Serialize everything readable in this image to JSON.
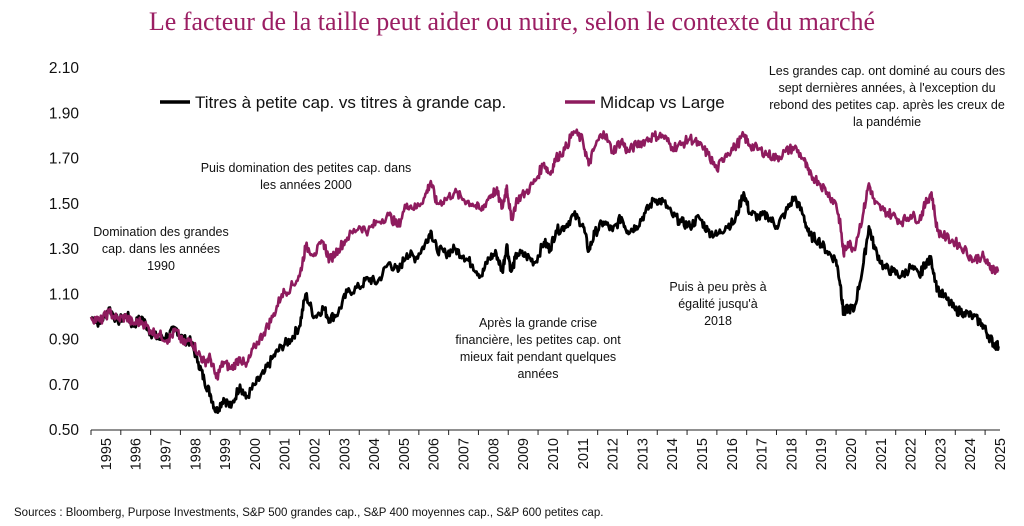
{
  "chart_data": {
    "type": "line",
    "title": "Le facteur de la taille peut aider ou nuire, selon le contexte du marché",
    "xlabel": "",
    "ylabel": "",
    "ylim": [
      0.5,
      2.1
    ],
    "yticks": [
      "0.50",
      "0.70",
      "0.90",
      "1.10",
      "1.30",
      "1.50",
      "1.70",
      "1.90",
      "2.10"
    ],
    "xlim": [
      1995,
      2025.5
    ],
    "xticks": [
      "1995",
      "1996",
      "1997",
      "1998",
      "1999",
      "2000",
      "2001",
      "2002",
      "2003",
      "2004",
      "2005",
      "2006",
      "2007",
      "2008",
      "2009",
      "2010",
      "2011",
      "2012",
      "2013",
      "2014",
      "2015",
      "2016",
      "2017",
      "2018",
      "2019",
      "2020",
      "2021",
      "2022",
      "2023",
      "2024",
      "2025"
    ],
    "legend_position": "top-left",
    "grid": false,
    "series": [
      {
        "name": "Titres à petite cap. vs titres à grande cap.",
        "color": "#000000",
        "points": [
          [
            1995.0,
            1.0
          ],
          [
            1995.3,
            0.97
          ],
          [
            1995.6,
            1.04
          ],
          [
            1995.9,
            0.98
          ],
          [
            1996.2,
            1.01
          ],
          [
            1996.4,
            0.96
          ],
          [
            1996.7,
            1.0
          ],
          [
            1997.0,
            0.93
          ],
          [
            1997.3,
            0.9
          ],
          [
            1997.6,
            0.92
          ],
          [
            1997.85,
            0.95
          ],
          [
            1998.1,
            0.9
          ],
          [
            1998.35,
            0.89
          ],
          [
            1998.6,
            0.8
          ],
          [
            1998.8,
            0.72
          ],
          [
            1999.0,
            0.66
          ],
          [
            1999.2,
            0.58
          ],
          [
            1999.45,
            0.64
          ],
          [
            1999.7,
            0.6
          ],
          [
            2000.0,
            0.7
          ],
          [
            2000.2,
            0.64
          ],
          [
            2000.5,
            0.7
          ],
          [
            2000.8,
            0.75
          ],
          [
            2001.1,
            0.82
          ],
          [
            2001.4,
            0.87
          ],
          [
            2001.7,
            0.9
          ],
          [
            2002.0,
            0.96
          ],
          [
            2002.2,
            1.1
          ],
          [
            2002.5,
            1.0
          ],
          [
            2002.8,
            1.04
          ],
          [
            2003.0,
            0.99
          ],
          [
            2003.3,
            1.02
          ],
          [
            2003.6,
            1.11
          ],
          [
            2004.0,
            1.13
          ],
          [
            2004.3,
            1.17
          ],
          [
            2004.6,
            1.15
          ],
          [
            2005.0,
            1.24
          ],
          [
            2005.3,
            1.2
          ],
          [
            2005.6,
            1.28
          ],
          [
            2005.9,
            1.26
          ],
          [
            2006.2,
            1.32
          ],
          [
            2006.4,
            1.38
          ],
          [
            2006.6,
            1.3
          ],
          [
            2006.9,
            1.28
          ],
          [
            2007.2,
            1.3
          ],
          [
            2007.5,
            1.27
          ],
          [
            2007.8,
            1.23
          ],
          [
            2008.1,
            1.18
          ],
          [
            2008.35,
            1.26
          ],
          [
            2008.6,
            1.28
          ],
          [
            2008.8,
            1.2
          ],
          [
            2008.95,
            1.32
          ],
          [
            2009.1,
            1.2
          ],
          [
            2009.3,
            1.28
          ],
          [
            2009.6,
            1.27
          ],
          [
            2009.9,
            1.24
          ],
          [
            2010.2,
            1.33
          ],
          [
            2010.4,
            1.3
          ],
          [
            2010.6,
            1.38
          ],
          [
            2010.9,
            1.4
          ],
          [
            2011.2,
            1.45
          ],
          [
            2011.5,
            1.41
          ],
          [
            2011.7,
            1.29
          ],
          [
            2011.9,
            1.37
          ],
          [
            2012.2,
            1.42
          ],
          [
            2012.5,
            1.38
          ],
          [
            2012.8,
            1.44
          ],
          [
            2013.0,
            1.38
          ],
          [
            2013.3,
            1.4
          ],
          [
            2013.6,
            1.46
          ],
          [
            2013.9,
            1.52
          ],
          [
            2014.2,
            1.51
          ],
          [
            2014.5,
            1.45
          ],
          [
            2014.8,
            1.42
          ],
          [
            2015.1,
            1.4
          ],
          [
            2015.4,
            1.44
          ],
          [
            2015.7,
            1.38
          ],
          [
            2016.0,
            1.36
          ],
          [
            2016.3,
            1.4
          ],
          [
            2016.6,
            1.42
          ],
          [
            2016.9,
            1.55
          ],
          [
            2017.1,
            1.46
          ],
          [
            2017.4,
            1.44
          ],
          [
            2017.7,
            1.45
          ],
          [
            2018.0,
            1.4
          ],
          [
            2018.3,
            1.46
          ],
          [
            2018.6,
            1.53
          ],
          [
            2018.9,
            1.45
          ],
          [
            2019.1,
            1.36
          ],
          [
            2019.4,
            1.34
          ],
          [
            2019.7,
            1.29
          ],
          [
            2020.0,
            1.25
          ],
          [
            2020.15,
            1.14
          ],
          [
            2020.25,
            1.01
          ],
          [
            2020.4,
            1.04
          ],
          [
            2020.6,
            1.03
          ],
          [
            2020.9,
            1.22
          ],
          [
            2021.1,
            1.4
          ],
          [
            2021.3,
            1.3
          ],
          [
            2021.6,
            1.22
          ],
          [
            2021.9,
            1.2
          ],
          [
            2022.2,
            1.18
          ],
          [
            2022.5,
            1.22
          ],
          [
            2022.8,
            1.18
          ],
          [
            2023.0,
            1.24
          ],
          [
            2023.2,
            1.25
          ],
          [
            2023.4,
            1.12
          ],
          [
            2023.7,
            1.08
          ],
          [
            2024.0,
            1.03
          ],
          [
            2024.3,
            1.02
          ],
          [
            2024.6,
            1.0
          ],
          [
            2024.9,
            0.97
          ],
          [
            2025.1,
            0.92
          ],
          [
            2025.3,
            0.88
          ],
          [
            2025.45,
            0.87
          ]
        ]
      },
      {
        "name": "Midcap vs Large",
        "color": "#8e1b5e",
        "points": [
          [
            1995.0,
            1.0
          ],
          [
            1995.3,
            0.98
          ],
          [
            1995.6,
            1.02
          ],
          [
            1995.9,
            0.99
          ],
          [
            1996.2,
            1.0
          ],
          [
            1996.4,
            0.97
          ],
          [
            1996.7,
            0.98
          ],
          [
            1997.0,
            0.94
          ],
          [
            1997.3,
            0.92
          ],
          [
            1997.6,
            0.9
          ],
          [
            1997.85,
            0.94
          ],
          [
            1998.1,
            0.88
          ],
          [
            1998.35,
            0.9
          ],
          [
            1998.6,
            0.84
          ],
          [
            1998.8,
            0.8
          ],
          [
            1999.0,
            0.82
          ],
          [
            1999.2,
            0.73
          ],
          [
            1999.45,
            0.8
          ],
          [
            1999.7,
            0.77
          ],
          [
            2000.0,
            0.82
          ],
          [
            2000.2,
            0.78
          ],
          [
            2000.5,
            0.87
          ],
          [
            2000.8,
            0.93
          ],
          [
            2001.1,
            1.0
          ],
          [
            2001.4,
            1.1
          ],
          [
            2001.7,
            1.13
          ],
          [
            2002.0,
            1.18
          ],
          [
            2002.2,
            1.31
          ],
          [
            2002.5,
            1.28
          ],
          [
            2002.8,
            1.33
          ],
          [
            2003.0,
            1.25
          ],
          [
            2003.3,
            1.3
          ],
          [
            2003.6,
            1.35
          ],
          [
            2004.0,
            1.4
          ],
          [
            2004.3,
            1.38
          ],
          [
            2004.6,
            1.42
          ],
          [
            2005.0,
            1.45
          ],
          [
            2005.3,
            1.4
          ],
          [
            2005.6,
            1.5
          ],
          [
            2005.9,
            1.48
          ],
          [
            2006.2,
            1.53
          ],
          [
            2006.4,
            1.6
          ],
          [
            2006.6,
            1.5
          ],
          [
            2006.9,
            1.52
          ],
          [
            2007.2,
            1.55
          ],
          [
            2007.5,
            1.52
          ],
          [
            2007.8,
            1.5
          ],
          [
            2008.1,
            1.47
          ],
          [
            2008.35,
            1.53
          ],
          [
            2008.6,
            1.56
          ],
          [
            2008.8,
            1.48
          ],
          [
            2008.95,
            1.58
          ],
          [
            2009.1,
            1.43
          ],
          [
            2009.3,
            1.52
          ],
          [
            2009.6,
            1.55
          ],
          [
            2009.9,
            1.6
          ],
          [
            2010.2,
            1.68
          ],
          [
            2010.4,
            1.63
          ],
          [
            2010.6,
            1.7
          ],
          [
            2010.9,
            1.74
          ],
          [
            2011.2,
            1.82
          ],
          [
            2011.5,
            1.78
          ],
          [
            2011.7,
            1.67
          ],
          [
            2011.9,
            1.75
          ],
          [
            2012.2,
            1.82
          ],
          [
            2012.5,
            1.73
          ],
          [
            2012.8,
            1.78
          ],
          [
            2013.0,
            1.73
          ],
          [
            2013.3,
            1.76
          ],
          [
            2013.6,
            1.78
          ],
          [
            2013.9,
            1.8
          ],
          [
            2014.2,
            1.8
          ],
          [
            2014.5,
            1.75
          ],
          [
            2014.8,
            1.76
          ],
          [
            2015.1,
            1.79
          ],
          [
            2015.4,
            1.76
          ],
          [
            2015.7,
            1.72
          ],
          [
            2016.0,
            1.65
          ],
          [
            2016.3,
            1.72
          ],
          [
            2016.6,
            1.75
          ],
          [
            2016.9,
            1.8
          ],
          [
            2017.1,
            1.76
          ],
          [
            2017.4,
            1.74
          ],
          [
            2017.7,
            1.72
          ],
          [
            2018.0,
            1.7
          ],
          [
            2018.3,
            1.73
          ],
          [
            2018.6,
            1.75
          ],
          [
            2018.9,
            1.7
          ],
          [
            2019.1,
            1.63
          ],
          [
            2019.4,
            1.6
          ],
          [
            2019.7,
            1.55
          ],
          [
            2020.0,
            1.5
          ],
          [
            2020.15,
            1.4
          ],
          [
            2020.25,
            1.28
          ],
          [
            2020.4,
            1.33
          ],
          [
            2020.6,
            1.3
          ],
          [
            2020.9,
            1.45
          ],
          [
            2021.1,
            1.59
          ],
          [
            2021.3,
            1.5
          ],
          [
            2021.6,
            1.47
          ],
          [
            2021.9,
            1.45
          ],
          [
            2022.2,
            1.42
          ],
          [
            2022.5,
            1.45
          ],
          [
            2022.8,
            1.43
          ],
          [
            2023.0,
            1.5
          ],
          [
            2023.2,
            1.55
          ],
          [
            2023.4,
            1.38
          ],
          [
            2023.7,
            1.35
          ],
          [
            2024.0,
            1.33
          ],
          [
            2024.3,
            1.3
          ],
          [
            2024.6,
            1.25
          ],
          [
            2024.9,
            1.27
          ],
          [
            2025.1,
            1.23
          ],
          [
            2025.3,
            1.21
          ],
          [
            2025.45,
            1.2
          ]
        ]
      }
    ],
    "annotations": [
      {
        "lines": [
          "Domination des grandes",
          "cap. dans les années",
          "1990"
        ]
      },
      {
        "lines": [
          "Puis domination des petites cap. dans",
          "les années 2000"
        ]
      },
      {
        "lines": [
          "Après la grande crise",
          "financière, les petites cap. ont",
          "mieux fait pendant quelques",
          "années"
        ]
      },
      {
        "lines": [
          "Puis à peu près à",
          "égalité jusqu'à",
          "2018"
        ]
      },
      {
        "lines": [
          "Les grandes cap. ont dominé au cours des",
          "sept dernières années, à l'exception du",
          "rebond des petites cap. après les creux de",
          "la pandémie"
        ]
      }
    ],
    "source": "Sources : Bloomberg, Purpose Investments, S&P 500 grandes cap., S&P 400 moyennes cap., S&P 600 petites cap."
  }
}
